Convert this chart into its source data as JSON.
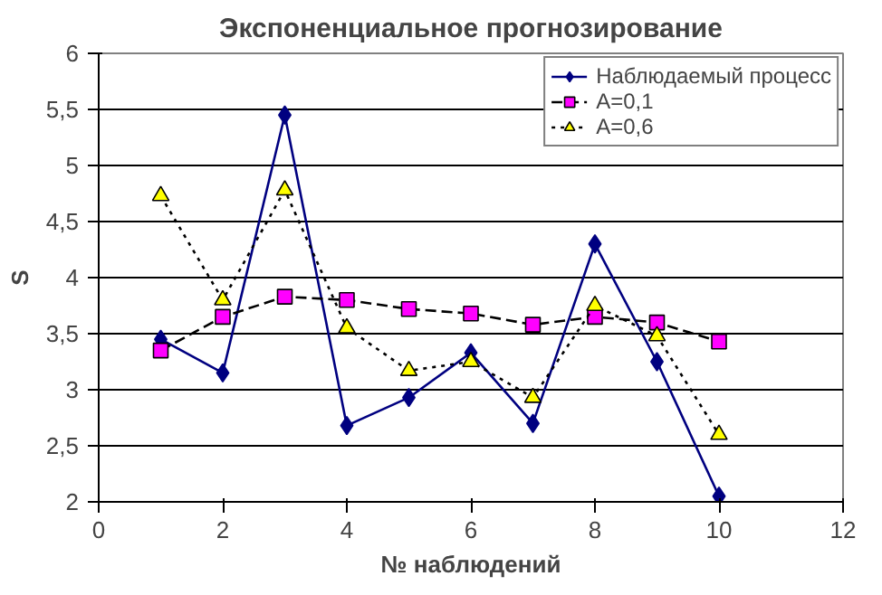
{
  "chart_data": {
    "type": "line",
    "title": "Экспоненциальное прогнозирование",
    "xlabel": "№ наблюдений",
    "ylabel": "S",
    "x": [
      1,
      2,
      3,
      4,
      5,
      6,
      7,
      8,
      9,
      10
    ],
    "series": [
      {
        "name": "Наблюдаемый процесс",
        "color": "#000080",
        "marker": "diamond",
        "line_style": "solid",
        "values": [
          3.45,
          3.15,
          5.45,
          2.68,
          2.93,
          3.33,
          2.7,
          4.3,
          3.25,
          2.05
        ]
      },
      {
        "name": "A=0,1",
        "color": "#ff00ff",
        "marker": "square",
        "line_style": "dashed",
        "values": [
          3.35,
          3.65,
          3.83,
          3.8,
          3.72,
          3.68,
          3.58,
          3.65,
          3.6,
          3.43
        ]
      },
      {
        "name": "A=0,6",
        "color": "#ffff00",
        "marker": "triangle",
        "line_style": "dotted",
        "values": [
          4.73,
          3.8,
          4.78,
          3.55,
          3.17,
          3.25,
          2.93,
          3.75,
          3.48,
          2.6
        ]
      }
    ],
    "xlim": [
      0,
      12
    ],
    "xticks": [
      0,
      2,
      4,
      6,
      8,
      10,
      12
    ],
    "ylim": [
      2,
      6
    ],
    "yticks": [
      2,
      {
        "value": 2.5,
        "label": "2,5"
      },
      3,
      {
        "value": 3.5,
        "label": "3,5"
      },
      4,
      {
        "value": 4.5,
        "label": "4,5"
      },
      5,
      {
        "value": 5.5,
        "label": "5,5"
      },
      6
    ],
    "grid": "y",
    "legend": "top right"
  }
}
